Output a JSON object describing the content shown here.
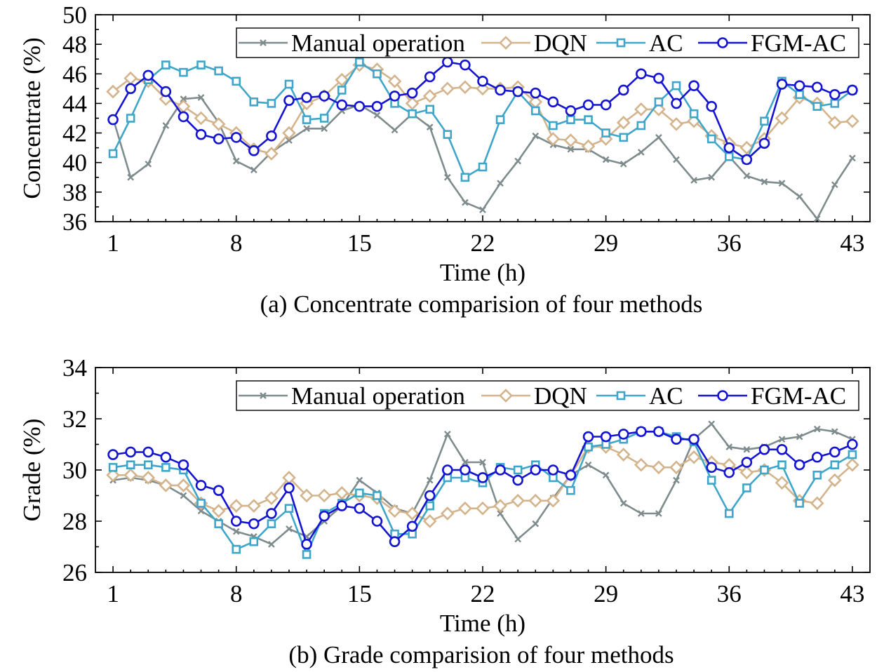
{
  "chart_data": [
    {
      "type": "line",
      "caption": "(a) Concentrate comparision of four methods",
      "xlabel": "Time (h)",
      "ylabel": "Concentrate (%)",
      "xlim": [
        0,
        44
      ],
      "ylim": [
        36,
        50
      ],
      "xticks": [
        1,
        8,
        15,
        22,
        29,
        36,
        43
      ],
      "yticks": [
        36,
        38,
        40,
        42,
        44,
        46,
        48,
        50
      ],
      "x": [
        1,
        2,
        3,
        4,
        5,
        6,
        7,
        8,
        9,
        10,
        11,
        12,
        13,
        14,
        15,
        16,
        17,
        18,
        19,
        20,
        21,
        22,
        23,
        24,
        25,
        26,
        27,
        28,
        29,
        30,
        31,
        32,
        33,
        34,
        35,
        36,
        37,
        38,
        39,
        40,
        41,
        42,
        43
      ],
      "legend_position": "top-right",
      "series": [
        {
          "name": "Manual operation",
          "color": "#7f8c8d",
          "marker": "x",
          "values": [
            43.0,
            39.0,
            39.9,
            42.5,
            44.3,
            44.4,
            42.7,
            40.1,
            39.5,
            40.7,
            41.5,
            42.3,
            42.3,
            43.5,
            43.9,
            43.2,
            42.2,
            43.3,
            42.4,
            39.0,
            37.3,
            36.8,
            38.6,
            40.1,
            41.8,
            41.2,
            40.9,
            40.9,
            40.2,
            39.9,
            40.7,
            41.7,
            40.2,
            38.8,
            39.0,
            40.4,
            39.1,
            38.7,
            38.6,
            37.7,
            36.2,
            38.5,
            40.3
          ]
        },
        {
          "name": "DQN",
          "color": "#d3b48c",
          "marker": "diamond",
          "values": [
            44.8,
            45.7,
            45.5,
            44.3,
            43.8,
            43.0,
            42.6,
            42.0,
            40.9,
            40.6,
            42.0,
            44.0,
            44.5,
            45.6,
            46.6,
            46.3,
            45.5,
            44.0,
            44.5,
            45.0,
            45.1,
            45.0,
            45.0,
            45.1,
            44.1,
            41.6,
            41.5,
            41.1,
            41.6,
            42.7,
            43.6,
            43.6,
            42.6,
            42.8,
            41.8,
            41.3,
            41.0,
            41.6,
            43.0,
            44.4,
            44.0,
            42.7,
            42.8
          ]
        },
        {
          "name": "AC",
          "color": "#40a6c9",
          "marker": "square",
          "values": [
            40.6,
            43.0,
            45.6,
            46.6,
            46.1,
            46.6,
            46.2,
            45.5,
            44.1,
            44.0,
            45.3,
            42.9,
            43.0,
            44.9,
            46.8,
            46.0,
            44.0,
            43.3,
            43.6,
            41.9,
            39.0,
            39.7,
            42.9,
            44.8,
            43.5,
            42.5,
            42.9,
            42.9,
            42.0,
            41.7,
            42.5,
            44.1,
            45.2,
            43.3,
            41.6,
            40.4,
            40.2,
            42.8,
            45.5,
            44.6,
            43.8,
            44.0,
            44.9
          ]
        },
        {
          "name": "FGM-AC",
          "color": "#1414d2",
          "marker": "circle",
          "values": [
            42.9,
            45.0,
            45.9,
            44.8,
            43.1,
            41.9,
            41.6,
            41.7,
            40.8,
            41.8,
            44.2,
            44.4,
            44.5,
            43.9,
            43.8,
            43.8,
            44.5,
            44.7,
            45.8,
            46.8,
            46.6,
            45.5,
            44.9,
            44.8,
            44.7,
            44.1,
            43.5,
            43.9,
            43.9,
            44.9,
            46.0,
            45.7,
            44.0,
            45.2,
            43.8,
            41.0,
            40.2,
            41.3,
            45.3,
            45.2,
            45.1,
            44.6,
            44.9
          ]
        }
      ]
    },
    {
      "type": "line",
      "caption": "(b) Grade comparision of four methods",
      "xlabel": "Time (h)",
      "ylabel": "Grade (%)",
      "xlim": [
        0,
        44
      ],
      "ylim": [
        26,
        34
      ],
      "xticks": [
        1,
        8,
        15,
        22,
        29,
        36,
        43
      ],
      "yticks": [
        26,
        28,
        30,
        32,
        34
      ],
      "x": [
        1,
        2,
        3,
        4,
        5,
        6,
        7,
        8,
        9,
        10,
        11,
        12,
        13,
        14,
        15,
        16,
        17,
        18,
        19,
        20,
        21,
        22,
        23,
        24,
        25,
        26,
        27,
        28,
        29,
        30,
        31,
        32,
        33,
        34,
        35,
        36,
        37,
        38,
        39,
        40,
        41,
        42,
        43
      ],
      "legend_position": "top-right",
      "series": [
        {
          "name": "Manual operation",
          "color": "#7f8c8d",
          "marker": "x",
          "values": [
            29.6,
            29.7,
            29.6,
            29.4,
            29.0,
            28.4,
            28.0,
            27.6,
            27.4,
            27.1,
            27.7,
            27.4,
            28.0,
            28.6,
            29.6,
            29.1,
            28.5,
            28.3,
            29.6,
            31.4,
            30.3,
            30.3,
            28.3,
            27.3,
            27.9,
            28.9,
            29.8,
            30.2,
            29.8,
            28.7,
            28.3,
            28.3,
            29.6,
            31.2,
            31.8,
            30.9,
            30.8,
            30.9,
            31.2,
            31.3,
            31.6,
            31.5,
            31.2
          ]
        },
        {
          "name": "DQN",
          "color": "#d3b48c",
          "marker": "diamond",
          "values": [
            29.8,
            29.8,
            29.7,
            29.4,
            29.4,
            28.7,
            28.4,
            28.6,
            28.6,
            28.9,
            29.7,
            29.0,
            29.0,
            29.1,
            29.0,
            28.9,
            28.4,
            28.3,
            28.0,
            28.3,
            28.5,
            28.5,
            28.6,
            28.8,
            28.8,
            28.8,
            29.8,
            30.9,
            30.9,
            30.6,
            30.2,
            30.1,
            30.1,
            30.5,
            30.3,
            30.2,
            29.9,
            30.0,
            29.5,
            28.8,
            28.7,
            29.6,
            30.2
          ]
        },
        {
          "name": "AC",
          "color": "#40a6c9",
          "marker": "square",
          "values": [
            30.1,
            30.2,
            30.2,
            30.1,
            30.0,
            28.7,
            27.9,
            26.9,
            27.2,
            27.9,
            28.5,
            26.7,
            28.3,
            28.7,
            29.1,
            29.0,
            27.5,
            27.5,
            28.6,
            29.7,
            29.7,
            29.5,
            30.1,
            30.0,
            30.2,
            29.7,
            29.2,
            30.9,
            31.0,
            31.2,
            31.5,
            31.5,
            31.3,
            31.1,
            29.6,
            28.3,
            29.3,
            30.0,
            30.2,
            28.7,
            29.8,
            30.2,
            30.6
          ]
        },
        {
          "name": "FGM-AC",
          "color": "#1414d2",
          "marker": "circle",
          "values": [
            30.6,
            30.7,
            30.7,
            30.5,
            30.2,
            29.4,
            29.2,
            28.0,
            27.9,
            28.3,
            29.3,
            27.1,
            28.2,
            28.6,
            28.5,
            28.0,
            27.2,
            27.8,
            29.0,
            30.0,
            30.0,
            29.7,
            30.0,
            29.6,
            30.0,
            30.0,
            29.8,
            31.3,
            31.3,
            31.4,
            31.5,
            31.5,
            31.2,
            31.2,
            30.1,
            29.9,
            30.3,
            30.8,
            30.8,
            30.2,
            30.5,
            30.7,
            31.0
          ]
        }
      ]
    }
  ]
}
